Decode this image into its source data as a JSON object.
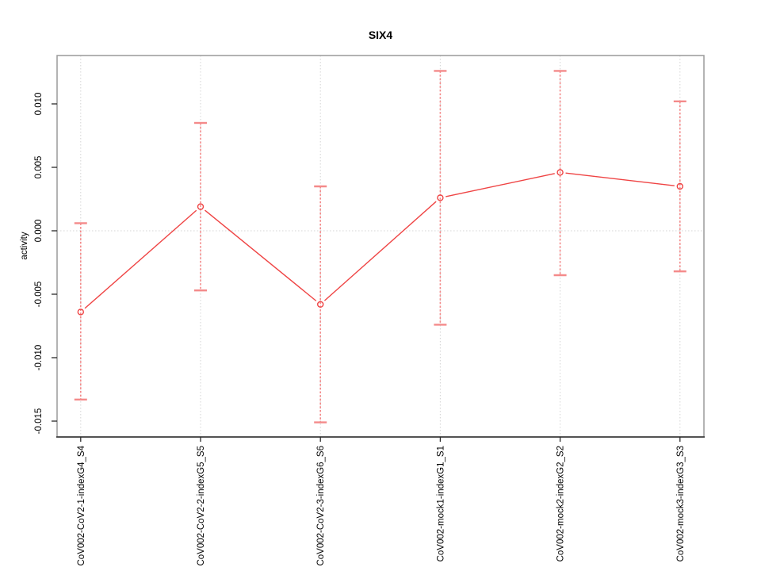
{
  "chart_data": {
    "type": "line",
    "title": "SIX4",
    "xlabel": "",
    "ylabel": "activity",
    "categories": [
      "CoV002-CoV2-1-indexG4_S4",
      "CoV002-CoV2-2-indexG5_S5",
      "CoV002-CoV2-3-indexG6_S6",
      "CoV002-mock1-indexG1_S1",
      "CoV002-mock2-indexG2_S2",
      "CoV002-mock3-indexG3_S3"
    ],
    "series": [
      {
        "name": "SIX4 activity",
        "values": [
          -0.0064,
          0.0019,
          -0.0058,
          0.0026,
          0.0046,
          0.0035
        ],
        "error_low": [
          -0.0133,
          -0.0047,
          -0.0151,
          -0.0074,
          -0.0035,
          -0.0032
        ],
        "error_high": [
          0.0006,
          0.0085,
          0.0035,
          0.0126,
          0.0126,
          0.0102
        ]
      }
    ],
    "yticks": [
      -0.015,
      -0.01,
      -0.005,
      0,
      0.005,
      0.01
    ],
    "ytick_labels": [
      "-0.015",
      "-0.010",
      "-0.005",
      "0.000",
      "0.005",
      "0.010"
    ],
    "ylim": [
      -0.0163,
      0.0138
    ],
    "legend": "none",
    "marker": "open-circle",
    "error_bars": true,
    "grid": {
      "vertical_at_categories": true,
      "horizontal_at_zero": true,
      "style": "dotted"
    },
    "colors": {
      "series": "#ef4444",
      "error_bar": "#f48a8a",
      "grid": "#d4d4d4",
      "box": "#9a9a9a",
      "axis": "#2b2b2b",
      "text": "#000000",
      "background": "#ffffff"
    }
  }
}
